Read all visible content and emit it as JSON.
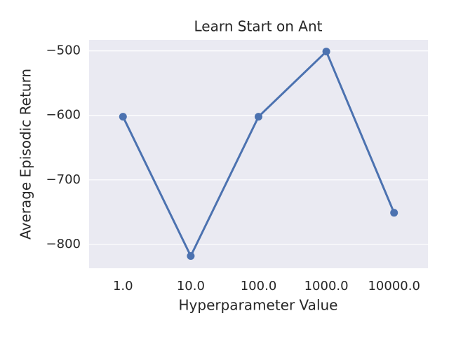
{
  "chart_data": {
    "type": "line",
    "title": "Learn Start on Ant",
    "x_label": "Hyperparameter Value",
    "y_label": "Average Episodic Return",
    "categories": [
      "1.0",
      "10.0",
      "100.0",
      "1000.0",
      "10000.0"
    ],
    "values": [
      -602,
      -818,
      -602,
      -501,
      -751
    ],
    "color": "#4c72b0",
    "ylim": [
      -837,
      -483
    ],
    "yticks": [
      {
        "value": -500,
        "label": "−500"
      },
      {
        "value": -600,
        "label": "−600"
      },
      {
        "value": -700,
        "label": "−700"
      },
      {
        "value": -800,
        "label": "−800"
      }
    ],
    "grid": true
  }
}
